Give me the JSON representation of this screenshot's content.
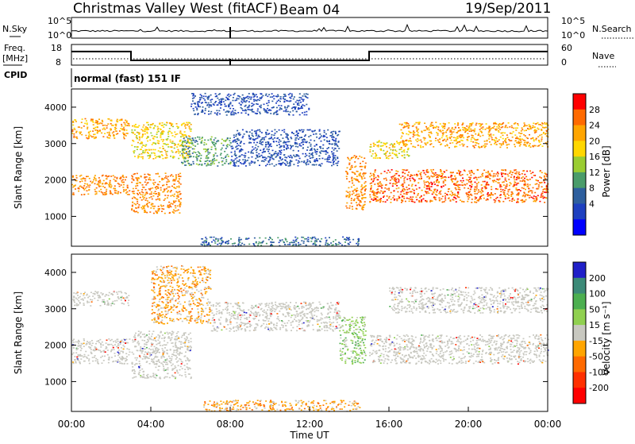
{
  "header": {
    "title": "Christmas Valley West (fitACF)",
    "beam": "Beam 04",
    "date": "19/Sep/2011"
  },
  "status_panels": {
    "nsky_label": "N.Sky",
    "nsearch_label": "N.Search",
    "nsky_ticks": [
      "10^5",
      "10^0"
    ],
    "nsearch_ticks": [
      "10^5",
      "10^0"
    ],
    "freq_label_1": "Freq.",
    "freq_label_2": "[MHz]",
    "freq_ticks": [
      "18",
      "8"
    ],
    "nave_label": "Nave",
    "nave_ticks": [
      "60",
      "0"
    ],
    "cpid_label": "CPID",
    "cpid_text": "normal (fast) 151 IF",
    "freq_segments": [
      {
        "x0": 0,
        "x1": 3,
        "freq": 14.6
      },
      {
        "x0": 3,
        "x1": 15,
        "freq": 10.3
      },
      {
        "x0": 15,
        "x1": 24,
        "freq": 14.6
      }
    ]
  },
  "chart_data": [
    {
      "type": "heatmap",
      "title": "Power",
      "ylabel": "Slant Range [km]",
      "xlim": [
        0,
        24
      ],
      "ylim": [
        180,
        4500
      ],
      "yticks": [
        1000,
        2000,
        3000,
        4000
      ],
      "colorbar_label": "Power [dB]",
      "colorbar_ticks": [
        "28",
        "24",
        "20",
        "16",
        "12",
        "8",
        "4"
      ],
      "colorbar_colors": [
        "#ff0000",
        "#ff6a00",
        "#ffa500",
        "#ffd700",
        "#9acd32",
        "#4a9c6a",
        "#2e5f9e",
        "#1e40c0",
        "#0000ff"
      ],
      "echo_regions": [
        {
          "t0": 0.0,
          "t1": 2.9,
          "r0": 1600,
          "r1": 2150,
          "level": 26
        },
        {
          "t0": 0.0,
          "t1": 2.9,
          "r0": 3150,
          "r1": 3700,
          "level": 24
        },
        {
          "t0": 3.0,
          "t1": 5.5,
          "r0": 1100,
          "r1": 2200,
          "level": 26
        },
        {
          "t0": 3.0,
          "t1": 6.0,
          "r0": 2600,
          "r1": 3600,
          "level": 20
        },
        {
          "t0": 5.5,
          "t1": 8.0,
          "r0": 2400,
          "r1": 3200,
          "level": 12
        },
        {
          "t0": 8.0,
          "t1": 13.5,
          "r0": 2400,
          "r1": 3400,
          "level": 6
        },
        {
          "t0": 6.0,
          "t1": 12.0,
          "r0": 3800,
          "r1": 4400,
          "level": 6
        },
        {
          "t0": 13.8,
          "t1": 14.8,
          "r0": 1200,
          "r1": 2700,
          "level": 26
        },
        {
          "t0": 15.0,
          "t1": 24.0,
          "r0": 1400,
          "r1": 2300,
          "level": 28
        },
        {
          "t0": 15.0,
          "t1": 17.0,
          "r0": 2600,
          "r1": 3100,
          "level": 20
        },
        {
          "t0": 16.5,
          "t1": 24.0,
          "r0": 2900,
          "r1": 3600,
          "level": 24
        },
        {
          "t0": 6.5,
          "t1": 14.5,
          "r0": 200,
          "r1": 450,
          "level": 8
        }
      ]
    },
    {
      "type": "heatmap",
      "title": "Velocity",
      "ylabel": "Slant Range [km]",
      "xlabel": "Time UT",
      "xlim": [
        0,
        24
      ],
      "ylim": [
        180,
        4500
      ],
      "yticks": [
        1000,
        2000,
        3000,
        4000
      ],
      "xticks": [
        "00:00",
        "04:00",
        "08:00",
        "12:00",
        "16:00",
        "20:00",
        "00:00"
      ],
      "colorbar_label": "Velocity [m s⁻¹]",
      "colorbar_ticks": [
        "200",
        "100",
        "50",
        "15",
        "-15",
        "-50",
        "-100",
        "-200"
      ],
      "colorbar_colors": [
        "#2020c8",
        "#3c8a78",
        "#4caf50",
        "#90d050",
        "#c8c8c0",
        "#ffa500",
        "#ff6a00",
        "#ff3000",
        "#ff0000"
      ],
      "echo_regions": [
        {
          "t0": 0.0,
          "t1": 2.9,
          "r0": 1500,
          "r1": 2200,
          "vel": "ground"
        },
        {
          "t0": 0.0,
          "t1": 2.9,
          "r0": 3100,
          "r1": 3500,
          "vel": "ground"
        },
        {
          "t0": 3.0,
          "t1": 6.0,
          "r0": 1100,
          "r1": 2400,
          "vel": "ground"
        },
        {
          "t0": 4.0,
          "t1": 7.0,
          "r0": 2600,
          "r1": 4200,
          "vel": -50
        },
        {
          "t0": 7.0,
          "t1": 13.5,
          "r0": 2400,
          "r1": 3200,
          "vel": "ground"
        },
        {
          "t0": 13.5,
          "t1": 14.8,
          "r0": 1500,
          "r1": 2800,
          "vel": 15
        },
        {
          "t0": 15.0,
          "t1": 24.0,
          "r0": 1500,
          "r1": 2300,
          "vel": "ground"
        },
        {
          "t0": 16.0,
          "t1": 24.0,
          "r0": 2900,
          "r1": 3600,
          "vel": "ground"
        },
        {
          "t0": 6.5,
          "t1": 14.5,
          "r0": 200,
          "r1": 500,
          "vel": -50
        }
      ]
    }
  ]
}
